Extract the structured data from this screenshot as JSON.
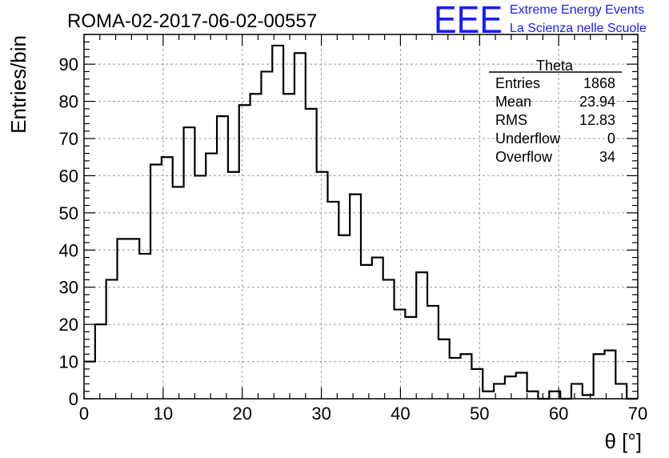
{
  "chart_data": {
    "type": "histogram",
    "title": "ROMA-02-2017-06-02-00557",
    "xlabel": "θ [°]",
    "ylabel": "Entries/bin",
    "xlim": [
      0,
      70
    ],
    "ylim": [
      0,
      98
    ],
    "grid": true,
    "x_ticks": [
      0,
      10,
      20,
      30,
      40,
      50,
      60,
      70
    ],
    "y_ticks": [
      0,
      10,
      20,
      30,
      40,
      50,
      60,
      70,
      80,
      90
    ],
    "bin_width": 1.4,
    "values": [
      10,
      20,
      32,
      43,
      43,
      39,
      63,
      65,
      57,
      73,
      60,
      66,
      76,
      61,
      79,
      82,
      88,
      95,
      82,
      93,
      78,
      61,
      53,
      44,
      55,
      36,
      38,
      32,
      24,
      22,
      34,
      25,
      16,
      11,
      12,
      8,
      2,
      4,
      6,
      7,
      2,
      0,
      2,
      0,
      4,
      1,
      12,
      13,
      4,
      0
    ],
    "stats_box": {
      "title": "Theta",
      "rows": [
        {
          "label": "Entries",
          "value": "1868"
        },
        {
          "label": "Mean",
          "value": "23.94"
        },
        {
          "label": "RMS",
          "value": "12.83"
        },
        {
          "label": "Underflow",
          "value": "0"
        },
        {
          "label": "Overflow",
          "value": "34"
        }
      ]
    }
  },
  "logo": {
    "text": "EEE",
    "line1": "Extreme Energy Events",
    "line2": "La Scienza nelle Scuole",
    "color": "#1a1aff"
  },
  "colors": {
    "line": "#000000",
    "grid": "#999999",
    "logo": "#1a1aff"
  }
}
